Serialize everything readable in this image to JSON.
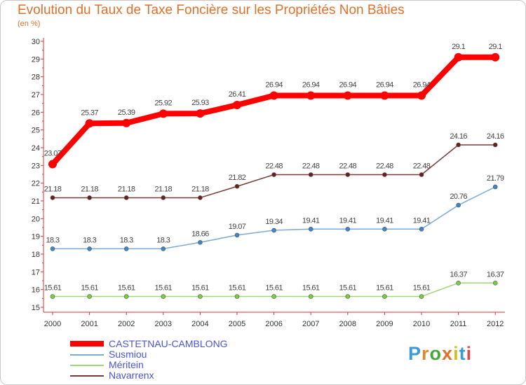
{
  "header": {
    "title": "Evolution du Taux de Taxe Foncière sur les Propriétés Non Bâties",
    "subtitle": "(en %)"
  },
  "logo": {
    "text": "Proxiti",
    "colors": [
      "#3b9bd8",
      "#e08a2a",
      "#47a83a",
      "#e0702a",
      "#d8bb22",
      "#3b9bd8",
      "#e04848"
    ]
  },
  "chart_data": {
    "type": "line",
    "title": "Evolution du Taux de Taxe Foncière sur les Propriétés Non Bâties",
    "ylabel": "(en %)",
    "xlabel": "",
    "categories": [
      "2000",
      "2001",
      "2002",
      "2003",
      "2004",
      "2005",
      "2006",
      "2007",
      "2008",
      "2009",
      "2010",
      "2011",
      "2012"
    ],
    "ylim": [
      15,
      30
    ],
    "yticks": [
      15,
      16,
      17,
      18,
      19,
      20,
      21,
      22,
      23,
      24,
      25,
      26,
      27,
      28,
      29,
      30
    ],
    "grid": false,
    "series": [
      {
        "name": "CASTETNAU-CAMBLONG",
        "color": "#ff0000",
        "point_color": "#ff0000",
        "values": [
          23.07,
          25.37,
          25.39,
          25.92,
          25.93,
          26.41,
          26.94,
          26.94,
          26.94,
          26.94,
          26.94,
          29.1,
          29.1
        ],
        "labels": [
          "23.07",
          "25.37",
          "25.39",
          "25.92",
          "25.93",
          "26.41",
          "26.94",
          "26.94",
          "26.94",
          "26.94",
          "26.94",
          "29.1",
          "29.1"
        ]
      },
      {
        "name": "Susmiou",
        "color": "#7aaad4",
        "point_color": "#3f86c8",
        "values": [
          18.3,
          18.3,
          18.3,
          18.3,
          18.66,
          19.07,
          19.34,
          19.41,
          19.41,
          19.41,
          19.41,
          20.76,
          21.79
        ],
        "labels": [
          "18.3",
          "18.3",
          "18.3",
          "18.3",
          "18.66",
          "19.07",
          "19.34",
          "19.41",
          "19.41",
          "19.41",
          "19.41",
          "20.76",
          "21.79"
        ]
      },
      {
        "name": "Méritein",
        "color": "#9ed678",
        "point_color": "#7ccc3e",
        "values": [
          15.61,
          15.61,
          15.61,
          15.61,
          15.61,
          15.61,
          15.61,
          15.61,
          15.61,
          15.61,
          15.61,
          16.37,
          16.37
        ],
        "labels": [
          "15.61",
          "15.61",
          "15.61",
          "15.61",
          "15.61",
          "15.61",
          "15.61",
          "15.61",
          "15.61",
          "15.61",
          "15.61",
          "16.37",
          "16.37"
        ]
      },
      {
        "name": "Navarrenx",
        "color": "#7a3a3a",
        "point_color": "#6a1f1f",
        "values": [
          21.18,
          21.18,
          21.18,
          21.18,
          21.18,
          21.82,
          22.48,
          22.48,
          22.48,
          22.48,
          22.48,
          24.16,
          24.16
        ],
        "labels": [
          "21.18",
          "21.18",
          "21.18",
          "21.18",
          "21.18",
          "21.82",
          "22.48",
          "22.48",
          "22.48",
          "22.48",
          "22.48",
          "24.16",
          "24.16"
        ]
      }
    ],
    "legend_position": "bottom-left"
  }
}
